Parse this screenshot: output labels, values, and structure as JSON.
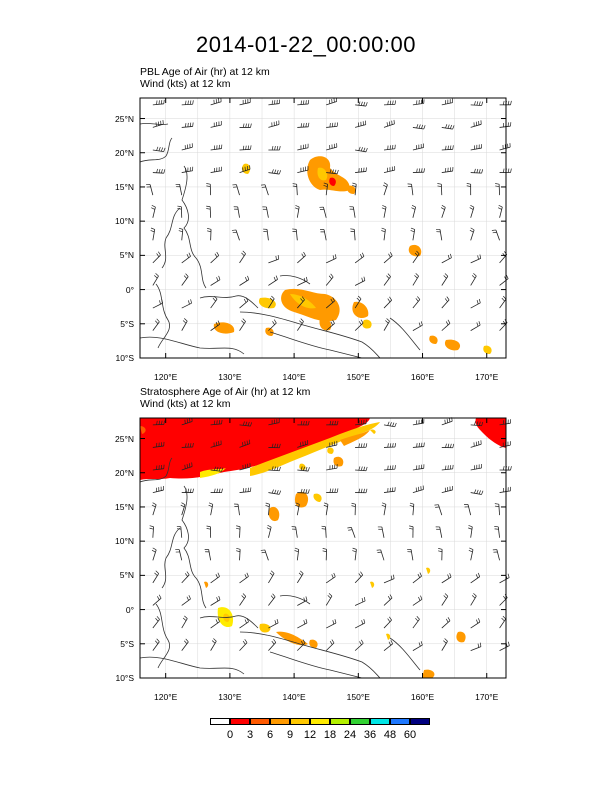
{
  "title": "2014-01-22_00:00:00",
  "panels": [
    {
      "line1": "PBL Age of Air    (hr)      at   12 km",
      "line2": "Wind    (kts)      at   12 km"
    },
    {
      "line1": "Stratosphere Age of Air    (hr)      at   12 km",
      "line2": "Wind    (kts)      at   12 km"
    }
  ],
  "axes": {
    "lat_ticks": [
      {
        "value": 25,
        "label": "25°N"
      },
      {
        "value": 20,
        "label": "20°N"
      },
      {
        "value": 15,
        "label": "15°N"
      },
      {
        "value": 10,
        "label": "10°N"
      },
      {
        "value": 5,
        "label": "5°N"
      },
      {
        "value": 0,
        "label": "0°"
      },
      {
        "value": -5,
        "label": "5°S"
      },
      {
        "value": -10,
        "label": "10°S"
      }
    ],
    "lon_ticks": [
      {
        "value": 120,
        "label": "120°E"
      },
      {
        "value": 130,
        "label": "130°E"
      },
      {
        "value": 140,
        "label": "140°E"
      },
      {
        "value": 150,
        "label": "150°E"
      },
      {
        "value": 160,
        "label": "160°E"
      },
      {
        "value": 170,
        "label": "170°E"
      }
    ],
    "lon_range": [
      116,
      173
    ],
    "lat_range": [
      -10,
      28
    ]
  },
  "legend": {
    "labels": [
      "0",
      "3",
      "6",
      "9",
      "12",
      "18",
      "24",
      "36",
      "48",
      "60"
    ],
    "colors": [
      "#ffffff",
      "#ff0000",
      "#ff5a00",
      "#ff9a00",
      "#ffc800",
      "#ffeb00",
      "#b4f000",
      "#32d232",
      "#00e6e6",
      "#1e78ff",
      "#000080"
    ]
  },
  "colors": {
    "high": "#ff0000",
    "mid": "#ff9a00",
    "low": "#ffc800",
    "pale": "#ffeb00"
  }
}
